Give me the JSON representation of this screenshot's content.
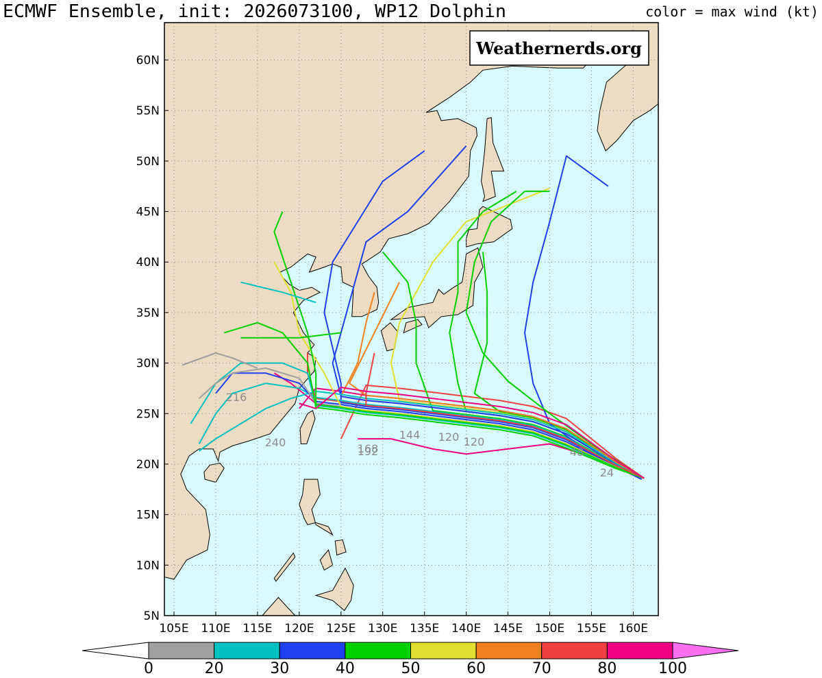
{
  "header": {
    "title": "ECMWF Ensemble, init: 2026073100, WP12 Dolphin",
    "legend_note": "color = max wind (kt)"
  },
  "watermark": "Weathernerds.org",
  "map": {
    "xlim": [
      103.85,
      163
    ],
    "ylim": [
      5,
      63.7
    ],
    "lon_ticks": [
      {
        "value": 105,
        "label": "105E"
      },
      {
        "value": 110,
        "label": "110E"
      },
      {
        "value": 115,
        "label": "115E"
      },
      {
        "value": 120,
        "label": "120E"
      },
      {
        "value": 125,
        "label": "125E"
      },
      {
        "value": 130,
        "label": "130E"
      },
      {
        "value": 135,
        "label": "135E"
      },
      {
        "value": 140,
        "label": "140E"
      },
      {
        "value": 145,
        "label": "145E"
      },
      {
        "value": 150,
        "label": "150E"
      },
      {
        "value": 155,
        "label": "155E"
      },
      {
        "value": 160,
        "label": "160E"
      }
    ],
    "lat_ticks": [
      {
        "value": 5,
        "label": "5N"
      },
      {
        "value": 10,
        "label": "10N"
      },
      {
        "value": 15,
        "label": "15N"
      },
      {
        "value": 20,
        "label": "20N"
      },
      {
        "value": 25,
        "label": "25N"
      },
      {
        "value": 30,
        "label": "30N"
      },
      {
        "value": 35,
        "label": "35N"
      },
      {
        "value": 40,
        "label": "40N"
      },
      {
        "value": 45,
        "label": "45N"
      },
      {
        "value": 50,
        "label": "50N"
      },
      {
        "value": 55,
        "label": "55N"
      },
      {
        "value": 60,
        "label": "60N"
      }
    ],
    "track_labels": [
      "240",
      "216",
      "168",
      "192",
      "144",
      "120",
      "120",
      "48",
      "24"
    ]
  },
  "colorbar": {
    "ticks": [
      0,
      20,
      30,
      40,
      50,
      60,
      70,
      80,
      100
    ],
    "colors": [
      "#ffffff",
      "#a0a0a0",
      "#00c0c0",
      "#2040f0",
      "#00d000",
      "#e0e030",
      "#f08020",
      "#f04040",
      "#f00080",
      "#f870f0"
    ]
  }
}
